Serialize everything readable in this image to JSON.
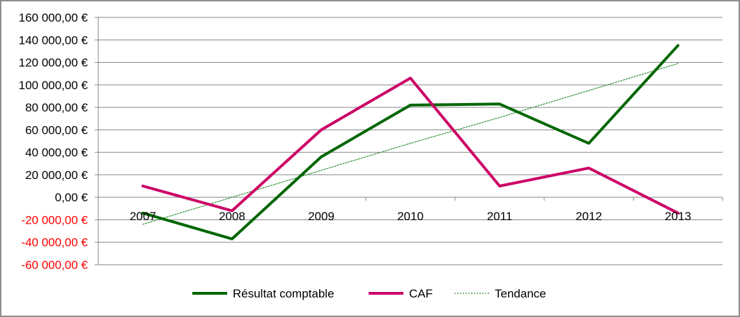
{
  "chart_data": {
    "type": "line",
    "title": "",
    "xlabel": "",
    "ylabel": "",
    "categories": [
      "2007",
      "2008",
      "2009",
      "2010",
      "2011",
      "2012",
      "2013"
    ],
    "ylim": [
      -60000,
      160000
    ],
    "yticks": [
      160000,
      140000,
      120000,
      100000,
      80000,
      60000,
      40000,
      20000,
      0,
      -20000,
      -40000,
      -60000
    ],
    "ytick_labels": [
      "160 000,00 €",
      "140 000,00 €",
      "120 000,00 €",
      "100 000,00 €",
      "80 000,00 €",
      "60 000,00 €",
      "40 000,00 €",
      "20 000,00 €",
      "0,00 €",
      "-20 000,00 €",
      "-40 000,00 €",
      "-60 000,00 €"
    ],
    "negative_tick_color": "#ff0000",
    "grid": true,
    "legend_position": "bottom",
    "series": [
      {
        "name": "Résultat comptable",
        "color": "#006600",
        "style": "solid",
        "values": [
          -14000,
          -37000,
          36000,
          82000,
          83000,
          48000,
          135000
        ]
      },
      {
        "name": "CAF",
        "color": "#cc0066",
        "style": "solid",
        "values": [
          10000,
          -12000,
          60000,
          106000,
          10000,
          26000,
          -14000
        ]
      },
      {
        "name": "Tendance",
        "color": "#2e8b2e",
        "style": "dotted",
        "values": [
          -24000,
          0,
          24000,
          48000,
          71000,
          95000,
          119000
        ]
      }
    ]
  }
}
